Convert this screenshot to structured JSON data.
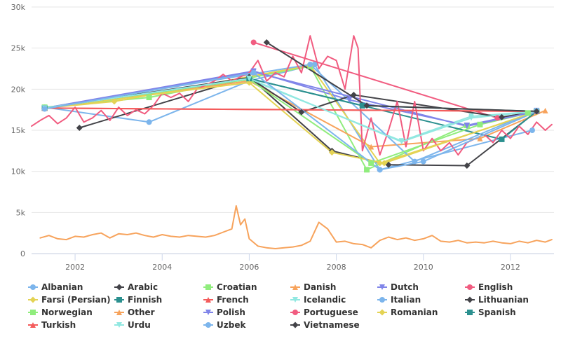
{
  "chart_data": {
    "type": "line",
    "title": "",
    "xlabel": "",
    "ylabel": "",
    "xlim": [
      2001.0,
      2013.0
    ],
    "ylim": [
      0,
      30000
    ],
    "x_ticks": [
      2002,
      2004,
      2006,
      2008,
      2010,
      2012
    ],
    "x_tick_labels": [
      "2002",
      "2004",
      "2006",
      "2008",
      "2010",
      "2012"
    ],
    "y_ticks": [
      0,
      5000,
      10000,
      15000,
      20000,
      25000,
      30000
    ],
    "y_tick_labels": [
      "0",
      "5k",
      "10k",
      "15k",
      "20k",
      "25k",
      "30k"
    ],
    "grid": "horizontal",
    "legend_position": "bottom",
    "series": [
      {
        "name": "Albanian",
        "color": "#7cb5ec",
        "marker": "circle",
        "x": [
          2001.3,
          2003.7,
          2006.0,
          2007.5,
          2009.0,
          2012.5
        ],
        "y": [
          17800,
          16000,
          21000,
          23000,
          10200,
          15000
        ]
      },
      {
        "name": "Arabic",
        "color": "#434348",
        "marker": "diamond",
        "x": [
          2002.1,
          2006.0,
          2007.9,
          2009.2,
          2011.0,
          2012.6
        ],
        "y": [
          15300,
          21500,
          12500,
          10800,
          10700,
          17300
        ]
      },
      {
        "name": "Croatian",
        "color": "#90ed7d",
        "marker": "square",
        "x": [
          2001.3,
          2003.7,
          2007.4,
          2008.7,
          2011.0,
          2012.4
        ],
        "y": [
          17800,
          19000,
          22800,
          10200,
          15600,
          17100
        ]
      },
      {
        "name": "Danish",
        "color": "#f7a35c",
        "marker": "triangle",
        "x": [
          2001.3,
          2006.0,
          2008.8,
          2011.3,
          2012.8
        ],
        "y": [
          17700,
          21000,
          13000,
          14000,
          17400
        ]
      },
      {
        "name": "Dutch",
        "color": "#8085e9",
        "marker": "triangle-down",
        "x": [
          2001.3,
          2006.1,
          2008.3,
          2011.0,
          2012.6
        ],
        "y": [
          17700,
          22200,
          18700,
          15600,
          17400
        ]
      },
      {
        "name": "English",
        "color": "#f15c80",
        "marker": "circle",
        "x": [
          2006.1,
          2011.7
        ],
        "y": [
          25700,
          16500
        ]
      },
      {
        "name": "Farsi (Persian)",
        "color": "#e4d354",
        "marker": "diamond",
        "x": [
          2001.3,
          2002.9,
          2007.4,
          2009.0,
          2012.6
        ],
        "y": [
          17700,
          18500,
          22900,
          11000,
          17200
        ]
      },
      {
        "name": "Finnish",
        "color": "#2b908f",
        "marker": "square",
        "x": [
          2001.3,
          2006.0,
          2008.6,
          2011.8,
          2012.6
        ],
        "y": [
          17700,
          21300,
          18000,
          13900,
          17300
        ]
      },
      {
        "name": "French",
        "color": "#f45b5b",
        "marker": "triangle",
        "x": [
          2001.3,
          2012.6
        ],
        "y": [
          17700,
          17300
        ]
      },
      {
        "name": "Icelandic",
        "color": "#91e8e1",
        "marker": "triangle-down",
        "x": [
          2001.3,
          2006.0,
          2009.5,
          2011.1,
          2012.6
        ],
        "y": [
          17700,
          21200,
          13700,
          16700,
          17300
        ]
      },
      {
        "name": "Italian",
        "color": "#7cb5ec",
        "marker": "circle",
        "x": [
          2001.3,
          2007.4,
          2009.8,
          2012.6
        ],
        "y": [
          17700,
          23000,
          11200,
          17400
        ]
      },
      {
        "name": "Lithuanian",
        "color": "#434348",
        "marker": "diamond",
        "x": [
          2001.3,
          2006.0,
          2007.2,
          2008.4,
          2011.8,
          2012.6
        ],
        "y": [
          17700,
          21400,
          17200,
          19300,
          16600,
          17300
        ]
      },
      {
        "name": "Norwegian",
        "color": "#90ed7d",
        "marker": "square",
        "x": [
          2001.3,
          2006.0,
          2008.8,
          2011.3,
          2012.6
        ],
        "y": [
          17700,
          21200,
          11000,
          15700,
          17300
        ]
      },
      {
        "name": "Other",
        "color": "#f7a35c",
        "marker": "triangle",
        "x": [
          2001.2,
          2001.4,
          2001.6,
          2001.8,
          2002.0,
          2002.2,
          2002.4,
          2002.6,
          2002.8,
          2003.0,
          2003.2,
          2003.4,
          2003.6,
          2003.8,
          2004.0,
          2004.2,
          2004.4,
          2004.6,
          2004.8,
          2005.0,
          2005.2,
          2005.4,
          2005.6,
          2005.7,
          2005.8,
          2005.9,
          2006.0,
          2006.2,
          2006.4,
          2006.6,
          2006.8,
          2007.0,
          2007.2,
          2007.4,
          2007.6,
          2007.8,
          2007.9,
          2008.0,
          2008.2,
          2008.4,
          2008.6,
          2008.8,
          2009.0,
          2009.2,
          2009.4,
          2009.6,
          2009.8,
          2010.0,
          2010.2,
          2010.4,
          2010.6,
          2010.8,
          2011.0,
          2011.2,
          2011.4,
          2011.6,
          2011.8,
          2012.0,
          2012.2,
          2012.4,
          2012.6,
          2012.8,
          2012.95
        ],
        "y": [
          1900,
          2200,
          1800,
          1700,
          2100,
          2000,
          2300,
          2500,
          1900,
          2400,
          2300,
          2500,
          2200,
          2000,
          2300,
          2100,
          2000,
          2200,
          2100,
          2000,
          2200,
          2600,
          3000,
          5800,
          3500,
          4200,
          1800,
          900,
          700,
          600,
          700,
          800,
          1000,
          1500,
          3800,
          3000,
          2200,
          1400,
          1500,
          1200,
          1100,
          700,
          1600,
          2000,
          1700,
          1900,
          1600,
          1800,
          2200,
          1500,
          1400,
          1600,
          1300,
          1400,
          1300,
          1500,
          1300,
          1200,
          1500,
          1300,
          1600,
          1400,
          1700
        ]
      },
      {
        "name": "Polish",
        "color": "#8085e9",
        "marker": "triangle-down",
        "x": [
          2001.3,
          2006.1,
          2011.0,
          2012.6
        ],
        "y": [
          17700,
          22100,
          15500,
          17300
        ]
      },
      {
        "name": "Portuguese",
        "color": "#f15c80",
        "marker": "circle",
        "x": [
          2001.0,
          2001.2,
          2001.4,
          2001.6,
          2001.8,
          2002.0,
          2002.2,
          2002.4,
          2002.6,
          2002.8,
          2003.0,
          2003.2,
          2003.4,
          2003.6,
          2003.8,
          2004.0,
          2004.2,
          2004.4,
          2004.6,
          2004.8,
          2005.0,
          2005.2,
          2005.4,
          2005.6,
          2005.8,
          2006.0,
          2006.2,
          2006.4,
          2006.6,
          2006.8,
          2007.0,
          2007.2,
          2007.4,
          2007.6,
          2007.8,
          2008.0,
          2008.2,
          2008.4,
          2008.5,
          2008.6,
          2008.8,
          2009.0,
          2009.2,
          2009.4,
          2009.6,
          2009.8,
          2010.0,
          2010.2,
          2010.4,
          2010.6,
          2010.8,
          2011.0,
          2011.2,
          2011.4,
          2011.6,
          2011.8,
          2012.0,
          2012.2,
          2012.4,
          2012.6,
          2012.8,
          2012.95
        ],
        "y": [
          15500,
          16200,
          16800,
          15800,
          16500,
          17800,
          16000,
          16500,
          17400,
          16200,
          17800,
          16800,
          17500,
          17000,
          18000,
          19500,
          19000,
          19500,
          18500,
          20000,
          20500,
          21000,
          21800,
          21000,
          21500,
          22000,
          23500,
          21000,
          22000,
          21500,
          24000,
          22000,
          26500,
          22500,
          24000,
          23500,
          20000,
          26500,
          25000,
          12500,
          16500,
          12000,
          15000,
          18500,
          13000,
          18500,
          12500,
          14000,
          12500,
          13500,
          12000,
          13500,
          14000,
          14500,
          13500,
          15000,
          14000,
          15500,
          14500,
          16000,
          15000,
          15700
        ]
      },
      {
        "name": "Romanian",
        "color": "#e4d354",
        "marker": "diamond",
        "x": [
          2001.3,
          2006.0,
          2007.9,
          2009.1,
          2012.6
        ],
        "y": [
          17700,
          20800,
          12300,
          11000,
          17300
        ]
      },
      {
        "name": "Spanish",
        "color": "#2b908f",
        "marker": "square",
        "x": [
          2001.3,
          2006.0,
          2008.6,
          2012.6
        ],
        "y": [
          17700,
          21300,
          18000,
          17300
        ]
      },
      {
        "name": "Turkish",
        "color": "#f45b5b",
        "marker": "triangle",
        "x": [
          2001.3,
          2012.6
        ],
        "y": [
          17700,
          17300
        ]
      },
      {
        "name": "Urdu",
        "color": "#91e8e1",
        "marker": "triangle-down",
        "x": [
          2001.3,
          2006.0,
          2009.5,
          2011.1,
          2012.6
        ],
        "y": [
          17700,
          21300,
          13600,
          16500,
          17300
        ]
      },
      {
        "name": "Uzbek",
        "color": "#7cb5ec",
        "marker": "circle",
        "x": [
          2001.3,
          2006.1,
          2009.0,
          2010.0,
          2012.6
        ],
        "y": [
          17600,
          22000,
          10200,
          11200,
          17300
        ]
      },
      {
        "name": "Vietnamese",
        "color": "#434348",
        "marker": "diamond",
        "x": [
          2006.4,
          2008.7,
          2012.6
        ],
        "y": [
          25700,
          18000,
          17300
        ]
      }
    ]
  }
}
